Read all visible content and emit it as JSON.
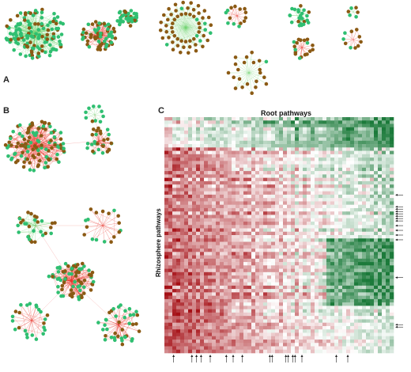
{
  "panels": {
    "a": {
      "label": "A"
    },
    "b": {
      "label": "B"
    },
    "c": {
      "label": "C",
      "title": "Root pathways",
      "ylabel": "Rhizosphere pathways"
    }
  },
  "colors": {
    "node_green": "#2fbf71",
    "node_brown": "#8b5a14",
    "edge_red": "#e8342a",
    "edge_green": "#6fd36f",
    "heat_red": "#a50f15",
    "heat_white": "#ffffff",
    "heat_green": "#1b7a3a"
  }
}
